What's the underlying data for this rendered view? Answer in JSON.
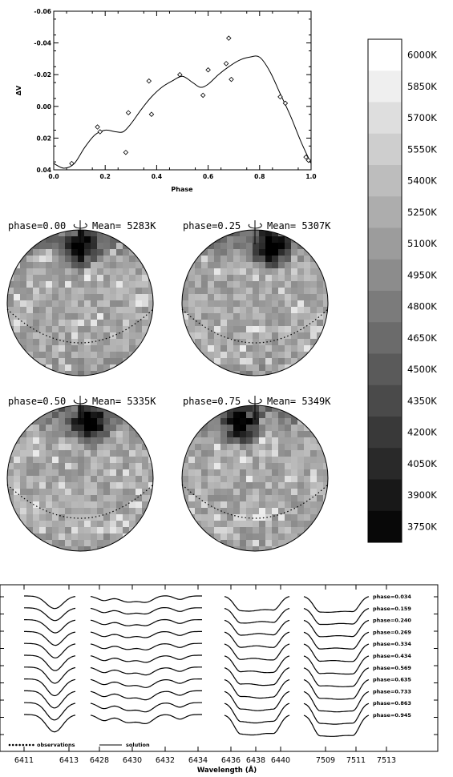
{
  "chart_data": [
    {
      "type": "scatter",
      "xlabel": "Phase",
      "ylabel": "ΔV",
      "xlim": [
        0.0,
        1.0
      ],
      "ylim": [
        0.04,
        -0.06
      ],
      "x_ticks": [
        "0.0",
        "0.2",
        "0.4",
        "0.6",
        "0.8",
        "1.0"
      ],
      "y_ticks": [
        "-0.06",
        "-0.04",
        "-0.02",
        "0.00",
        "0.02",
        "0.04"
      ],
      "observations": [
        {
          "x": 0.07,
          "y": 0.036
        },
        {
          "x": 0.17,
          "y": 0.013
        },
        {
          "x": 0.18,
          "y": 0.016
        },
        {
          "x": 0.28,
          "y": 0.029
        },
        {
          "x": 0.29,
          "y": 0.004
        },
        {
          "x": 0.37,
          "y": -0.016
        },
        {
          "x": 0.38,
          "y": 0.005
        },
        {
          "x": 0.49,
          "y": -0.02
        },
        {
          "x": 0.58,
          "y": -0.007
        },
        {
          "x": 0.6,
          "y": -0.023
        },
        {
          "x": 0.67,
          "y": -0.027
        },
        {
          "x": 0.68,
          "y": -0.043
        },
        {
          "x": 0.69,
          "y": -0.017
        },
        {
          "x": 0.88,
          "y": -0.006
        },
        {
          "x": 0.9,
          "y": -0.002
        },
        {
          "x": 0.98,
          "y": 0.032
        },
        {
          "x": 0.99,
          "y": 0.034
        }
      ],
      "model_curve": [
        [
          0.0,
          0.036
        ],
        [
          0.04,
          0.039
        ],
        [
          0.08,
          0.036
        ],
        [
          0.12,
          0.026
        ],
        [
          0.16,
          0.018
        ],
        [
          0.2,
          0.015
        ],
        [
          0.24,
          0.016
        ],
        [
          0.27,
          0.016
        ],
        [
          0.3,
          0.011
        ],
        [
          0.34,
          0.002
        ],
        [
          0.38,
          -0.006
        ],
        [
          0.42,
          -0.012
        ],
        [
          0.46,
          -0.016
        ],
        [
          0.5,
          -0.019
        ],
        [
          0.54,
          -0.015
        ],
        [
          0.57,
          -0.012
        ],
        [
          0.6,
          -0.014
        ],
        [
          0.64,
          -0.02
        ],
        [
          0.68,
          -0.025
        ],
        [
          0.72,
          -0.029
        ],
        [
          0.76,
          -0.031
        ],
        [
          0.8,
          -0.031
        ],
        [
          0.84,
          -0.022
        ],
        [
          0.88,
          -0.008
        ],
        [
          0.92,
          0.006
        ],
        [
          0.96,
          0.022
        ],
        [
          1.0,
          0.036
        ]
      ]
    },
    {
      "type": "colorbar",
      "labels": [
        "6000K",
        "5850K",
        "5700K",
        "5550K",
        "5400K",
        "5250K",
        "5100K",
        "4950K",
        "4800K",
        "4650K",
        "4500K",
        "4350K",
        "4200K",
        "4050K",
        "3900K",
        "3750K"
      ],
      "temperatures": [
        6000,
        5850,
        5700,
        5550,
        5400,
        5250,
        5100,
        4950,
        4800,
        4650,
        4500,
        4350,
        4200,
        4050,
        3900,
        3750
      ]
    },
    {
      "type": "maps",
      "panels": [
        {
          "phase_label": "phase=0.00",
          "mean_label": "Mean=  5283K",
          "spot_longitude_deg": 0
        },
        {
          "phase_label": "phase=0.25",
          "mean_label": "Mean=  5307K",
          "spot_longitude_deg": 30
        },
        {
          "phase_label": "phase=0.50",
          "mean_label": "Mean=  5335K",
          "spot_longitude_deg": 15
        },
        {
          "phase_label": "phase=0.75",
          "mean_label": "Mean=  5349K",
          "spot_longitude_deg": -25
        }
      ]
    },
    {
      "type": "line",
      "xlabel": "Wavelength (Å)",
      "x_ticks": [
        "6411",
        "6413",
        "6428",
        "6430",
        "6432",
        "6434",
        "6436",
        "6438",
        "6440",
        "7509",
        "7511",
        "7513"
      ],
      "legend": [
        "observations",
        "solution"
      ],
      "phases": [
        "phase=0.034",
        "phase=0.159",
        "phase=0.240",
        "phase=0.269",
        "phase=0.334",
        "phase=0.434",
        "phase=0.569",
        "phase=0.635",
        "phase=0.733",
        "phase=0.863",
        "phase=0.945"
      ]
    }
  ]
}
